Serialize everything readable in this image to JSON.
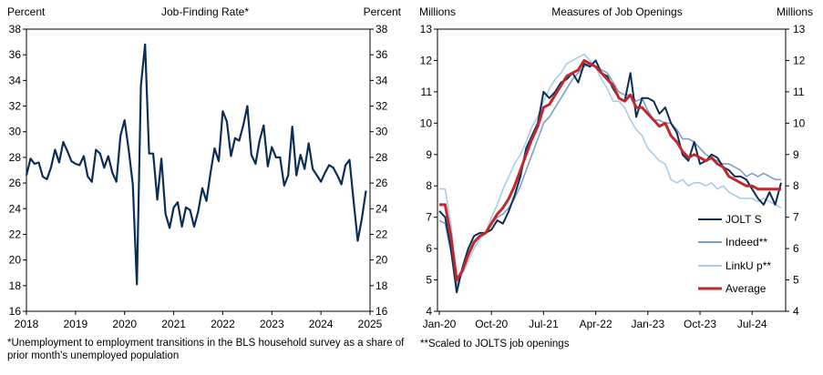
{
  "colors": {
    "navy": "#0b2e59",
    "indeed": "#7f9fc6",
    "linkup": "#a9cde6",
    "average": "#c0282d",
    "axis": "#000000"
  },
  "footnotes": {
    "left": "*Unemployment to employment transitions in the BLS household survey as a share of prior month's unemployed population",
    "right": "**Scaled to JOLTS job openings"
  },
  "chart_data": [
    {
      "type": "line",
      "title": "Job-Finding Rate*",
      "ylabel_left": "Percent",
      "ylabel_right": "Percent",
      "ylim": [
        16,
        38
      ],
      "yticks": [
        16,
        18,
        20,
        22,
        24,
        26,
        28,
        30,
        32,
        34,
        36,
        38
      ],
      "xlim": [
        2018,
        2025
      ],
      "xticks": [
        "2018",
        "2019",
        "2020",
        "2021",
        "2022",
        "2023",
        "2024",
        "2025"
      ],
      "legend": "none",
      "series": [
        {
          "color": "#0b2e59",
          "x": [
            2018.0,
            2018.083,
            2018.167,
            2018.25,
            2018.333,
            2018.417,
            2018.5,
            2018.583,
            2018.667,
            2018.75,
            2018.833,
            2018.917,
            2019.0,
            2019.083,
            2019.167,
            2019.25,
            2019.333,
            2019.417,
            2019.5,
            2019.583,
            2019.667,
            2019.75,
            2019.833,
            2019.917,
            2020.0,
            2020.083,
            2020.167,
            2020.25,
            2020.333,
            2020.417,
            2020.5,
            2020.583,
            2020.667,
            2020.75,
            2020.833,
            2020.917,
            2021.0,
            2021.083,
            2021.167,
            2021.25,
            2021.333,
            2021.417,
            2021.5,
            2021.583,
            2021.667,
            2021.75,
            2021.833,
            2021.917,
            2022.0,
            2022.083,
            2022.167,
            2022.25,
            2022.333,
            2022.417,
            2022.5,
            2022.583,
            2022.667,
            2022.75,
            2022.833,
            2022.917,
            2023.0,
            2023.083,
            2023.167,
            2023.25,
            2023.333,
            2023.417,
            2023.5,
            2023.583,
            2023.667,
            2023.75,
            2023.833,
            2023.917,
            2024.0,
            2024.083,
            2024.167,
            2024.25,
            2024.333,
            2024.417,
            2024.5,
            2024.583,
            2024.667,
            2024.75,
            2024.833,
            2024.917
          ],
          "y": [
            26.6,
            27.9,
            27.5,
            27.6,
            26.5,
            26.3,
            27.2,
            28.6,
            27.6,
            29.2,
            28.5,
            27.7,
            27.5,
            27.4,
            28.1,
            26.5,
            26.1,
            28.6,
            28.3,
            27.2,
            28.1,
            26.8,
            26.1,
            29.7,
            30.9,
            28.6,
            25.9,
            18.1,
            33.6,
            36.8,
            28.3,
            28.3,
            24.7,
            27.9,
            23.6,
            22.5,
            24.1,
            24.5,
            22.6,
            24.1,
            23.9,
            22.6,
            23.8,
            25.6,
            24.6,
            26.8,
            28.7,
            27.7,
            31.6,
            30.8,
            28.1,
            29.5,
            29.3,
            30.5,
            32.0,
            28.2,
            27.5,
            29.3,
            30.5,
            27.3,
            28.8,
            28.0,
            28.0,
            25.8,
            26.6,
            30.4,
            26.6,
            28.2,
            27.1,
            29.1,
            27.1,
            26.6,
            26.1,
            26.8,
            27.4,
            27.2,
            26.6,
            25.9,
            27.4,
            27.8,
            24.5,
            21.5,
            23.2,
            25.4
          ]
        }
      ]
    },
    {
      "type": "line",
      "title": "Measures  of Job Openings",
      "ylabel_left": "Millions",
      "ylabel_right": "Millions",
      "ylim": [
        4,
        13
      ],
      "yticks": [
        4,
        5,
        6,
        7,
        8,
        9,
        10,
        11,
        12,
        13
      ],
      "xticks": [
        "Jan-20",
        "Oct-20",
        "Jul-21",
        "Apr-22",
        "Jan-23",
        "Oct-23",
        "Jul-24"
      ],
      "x_start": "Jan-20",
      "x_step": "month",
      "legend": "bottom-right",
      "series": [
        {
          "name": "JOLT S",
          "color": "#0b2e59",
          "values": [
            7.2,
            7.0,
            6.0,
            4.6,
            5.4,
            6.0,
            6.4,
            6.5,
            6.5,
            6.6,
            6.9,
            6.8,
            7.2,
            7.7,
            8.3,
            9.2,
            9.6,
            10.0,
            11.0,
            10.8,
            11.0,
            11.3,
            11.4,
            11.6,
            11.3,
            11.9,
            11.8,
            12.0,
            11.6,
            11.5,
            11.1,
            10.8,
            10.7,
            11.6,
            10.2,
            10.8,
            10.8,
            10.7,
            10.3,
            10.5,
            10.0,
            9.7,
            9.0,
            8.8,
            9.4,
            8.7,
            8.8,
            9.0,
            8.9,
            8.6,
            8.5,
            8.3,
            8.3,
            8.2,
            7.9,
            7.6,
            7.4,
            7.8,
            7.4,
            8.1
          ]
        },
        {
          "name": "Indeed**",
          "color": "#7f9fc6",
          "values": [
            6.9,
            6.8,
            5.9,
            4.8,
            5.3,
            5.8,
            6.2,
            6.4,
            6.5,
            6.8,
            7.0,
            7.1,
            7.3,
            7.6,
            8.0,
            8.5,
            9.0,
            9.5,
            10.0,
            10.2,
            10.5,
            10.8,
            11.1,
            11.4,
            11.6,
            11.8,
            11.9,
            11.8,
            11.7,
            11.6,
            11.3,
            11.0,
            10.9,
            10.9,
            10.7,
            10.8,
            10.4,
            10.1,
            10.1,
            10.0,
            10.0,
            9.8,
            9.5,
            9.5,
            9.4,
            9.2,
            9.0,
            8.9,
            8.8,
            8.7,
            8.7,
            8.6,
            8.5,
            8.3,
            8.4,
            8.3,
            8.4,
            8.3,
            8.2,
            8.2
          ]
        },
        {
          "name": "LinkU p**",
          "color": "#a9cde6",
          "values": [
            7.9,
            7.9,
            6.8,
            4.9,
            5.2,
            5.6,
            6.0,
            6.3,
            6.5,
            7.0,
            7.4,
            7.9,
            8.3,
            8.7,
            9.0,
            9.4,
            9.9,
            10.2,
            10.7,
            11.1,
            11.4,
            11.6,
            11.9,
            12.0,
            12.1,
            12.2,
            12.0,
            11.8,
            11.4,
            11.1,
            10.7,
            10.7,
            10.5,
            10.1,
            9.8,
            9.6,
            9.2,
            9.0,
            8.8,
            8.7,
            8.2,
            8.1,
            8.2,
            8.0,
            8.1,
            8.1,
            8.0,
            8.1,
            7.9,
            8.0,
            7.8,
            7.7,
            7.6,
            7.6,
            7.6,
            7.5,
            7.6,
            7.5,
            7.4,
            7.3
          ]
        },
        {
          "name": "Average",
          "color": "#c0282d",
          "values": [
            7.4,
            7.4,
            6.4,
            5.0,
            5.3,
            5.8,
            6.2,
            6.4,
            6.5,
            6.8,
            7.1,
            7.3,
            7.6,
            8.0,
            8.5,
            9.0,
            9.5,
            9.9,
            10.5,
            10.6,
            10.9,
            11.2,
            11.5,
            11.6,
            11.7,
            12.0,
            11.9,
            11.8,
            11.6,
            11.4,
            11.2,
            10.8,
            10.7,
            10.9,
            10.5,
            10.5,
            10.3,
            10.1,
            9.9,
            10.0,
            9.6,
            9.4,
            9.1,
            8.9,
            9.0,
            8.9,
            8.8,
            8.9,
            8.7,
            8.6,
            8.3,
            8.2,
            8.1,
            8.0,
            8.0,
            7.9,
            7.9,
            7.9,
            7.9,
            7.9
          ]
        }
      ]
    }
  ]
}
